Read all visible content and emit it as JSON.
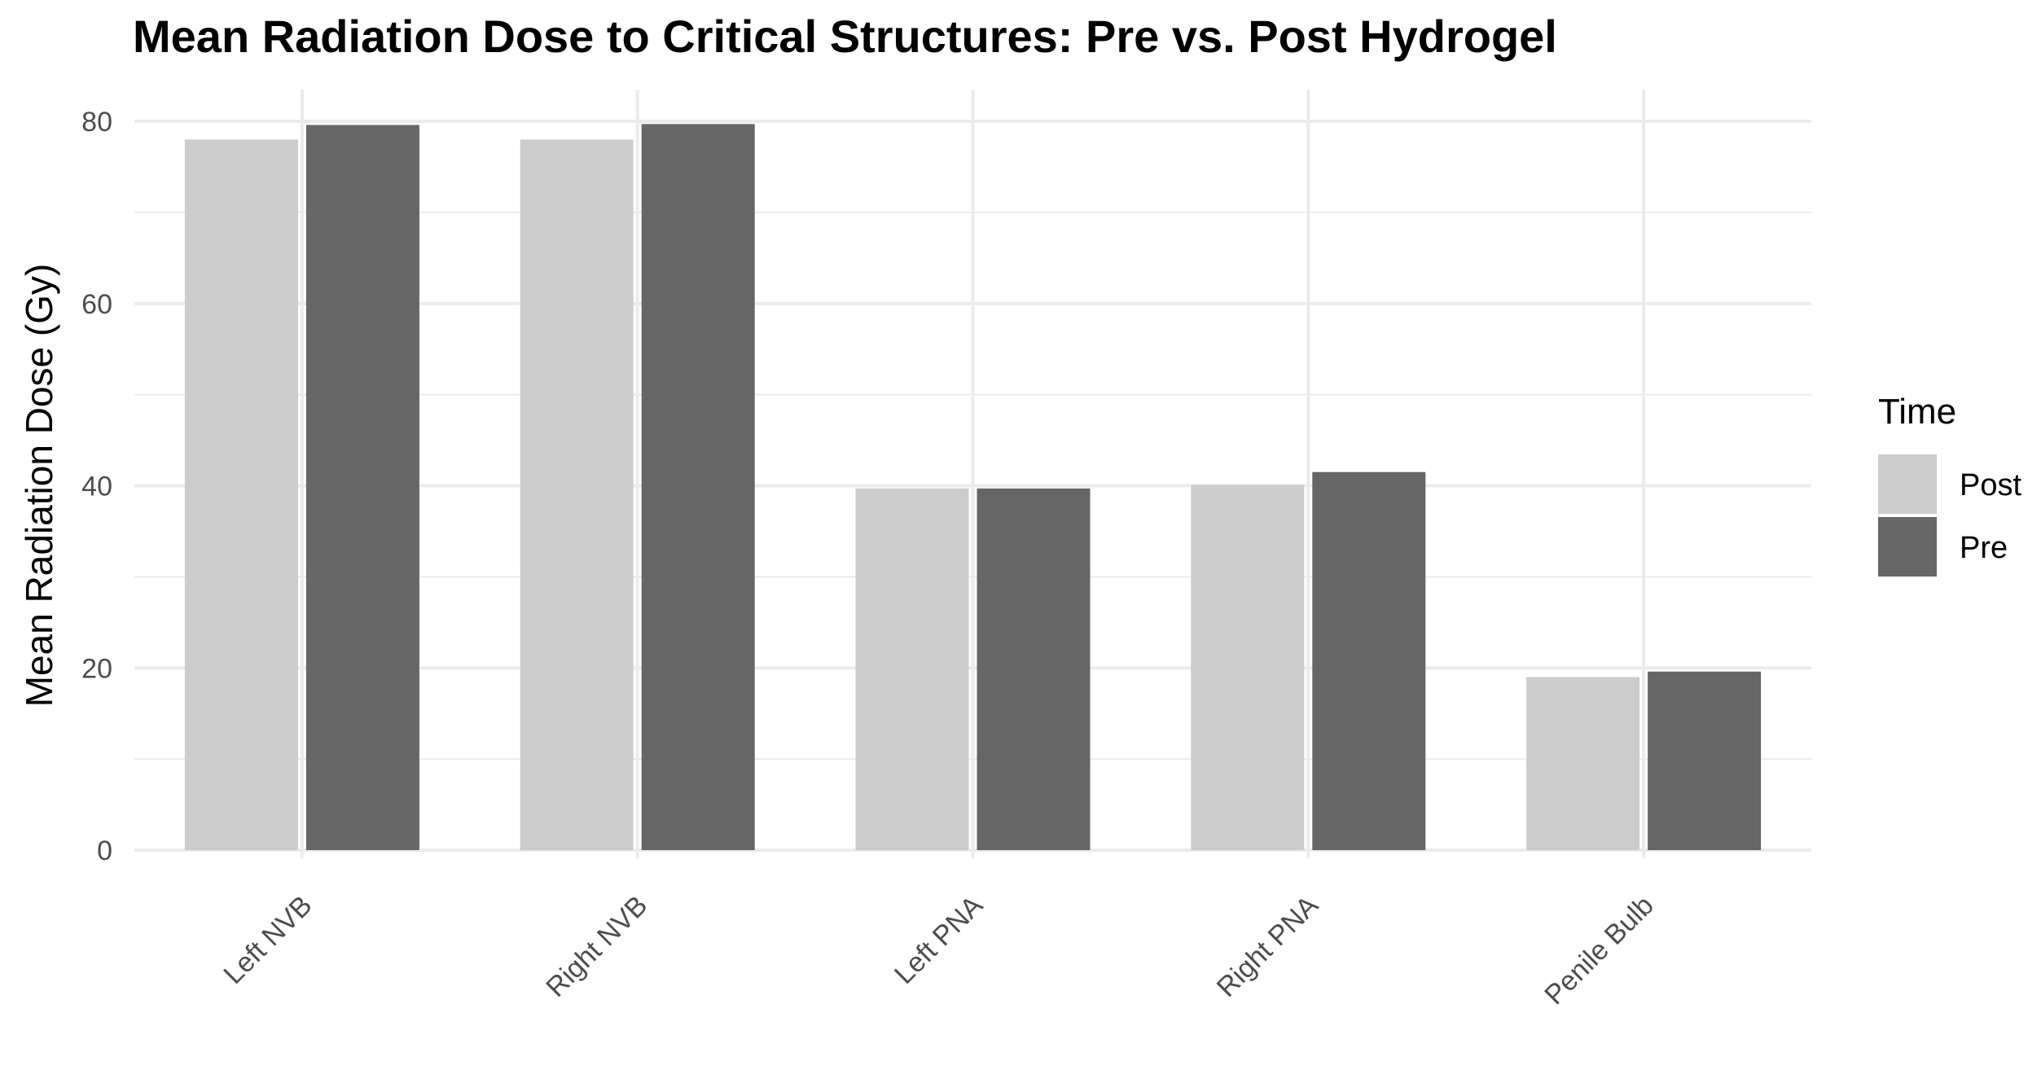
{
  "chart_data": {
    "type": "bar",
    "title": "Mean Radiation Dose to Critical Structures: Pre vs. Post Hydrogel",
    "xlabel": "",
    "ylabel": "Mean Radiation Dose (Gy)",
    "categories": [
      "Left NVB",
      "Right NVB",
      "Left PNA",
      "Right PNA",
      "Penile Bulb"
    ],
    "series": [
      {
        "name": "Post",
        "color": "#cccccc",
        "values": [
          78.0,
          78.0,
          39.7,
          40.1,
          19.0
        ]
      },
      {
        "name": "Pre",
        "color": "#666666",
        "values": [
          79.6,
          79.7,
          39.7,
          41.5,
          19.6
        ]
      }
    ],
    "ylim": [
      0,
      83
    ],
    "yticks": [
      "0",
      "20",
      "40",
      "60",
      "80"
    ],
    "grid": true,
    "legend": {
      "title": "Time",
      "position": "right"
    }
  }
}
